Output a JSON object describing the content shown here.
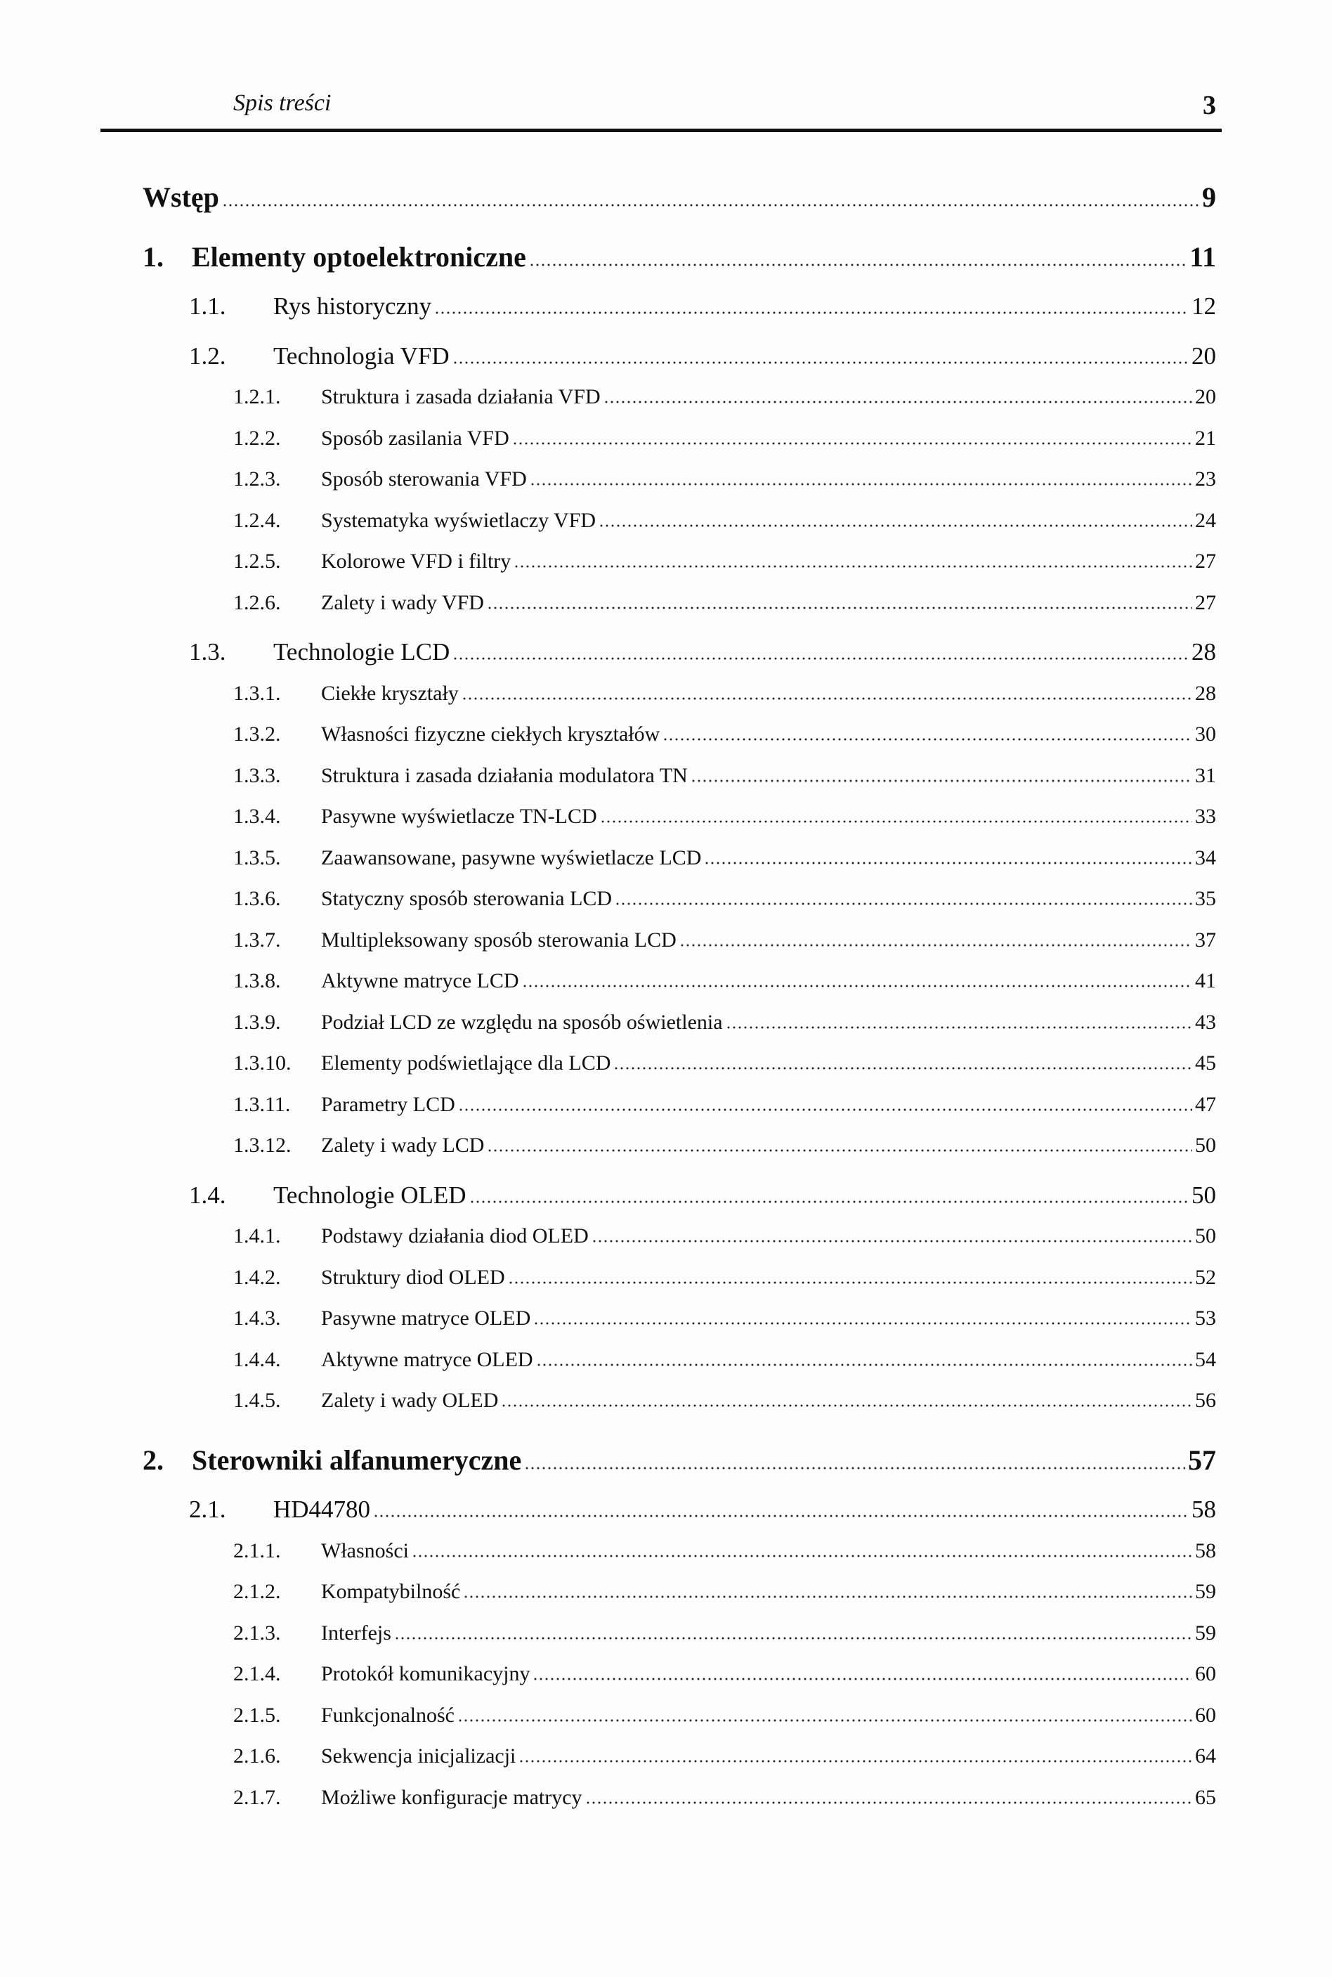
{
  "header": {
    "title": "Spis treści",
    "page_number": "3"
  },
  "toc": [
    {
      "level": 0,
      "num": "",
      "title": "Wstęp",
      "page": "9"
    },
    {
      "level": 1,
      "num": "1.",
      "title": "Elementy optoelektroniczne",
      "page": "11"
    },
    {
      "level": 2,
      "num": "1.1.",
      "title": "Rys historyczny",
      "page": "12"
    },
    {
      "level": 2,
      "num": "1.2.",
      "title": "Technologia VFD",
      "page": "20"
    },
    {
      "level": 3,
      "num": "1.2.1.",
      "title": "Struktura i zasada działania VFD",
      "page": "20"
    },
    {
      "level": 3,
      "num": "1.2.2.",
      "title": "Sposób zasilania VFD",
      "page": "21"
    },
    {
      "level": 3,
      "num": "1.2.3.",
      "title": "Sposób sterowania VFD",
      "page": "23"
    },
    {
      "level": 3,
      "num": "1.2.4.",
      "title": "Systematyka wyświetlaczy VFD",
      "page": "24"
    },
    {
      "level": 3,
      "num": "1.2.5.",
      "title": "Kolorowe VFD i filtry",
      "page": "27"
    },
    {
      "level": 3,
      "num": "1.2.6.",
      "title": "Zalety i wady VFD",
      "page": "27"
    },
    {
      "level": 2,
      "num": "1.3.",
      "title": "Technologie LCD",
      "page": "28"
    },
    {
      "level": 3,
      "num": "1.3.1.",
      "title": "Ciekłe kryształy",
      "page": "28"
    },
    {
      "level": 3,
      "num": "1.3.2.",
      "title": "Własności fizyczne ciekłych kryształów",
      "page": "30"
    },
    {
      "level": 3,
      "num": "1.3.3.",
      "title": "Struktura i zasada działania modulatora TN",
      "page": "31"
    },
    {
      "level": 3,
      "num": "1.3.4.",
      "title": "Pasywne wyświetlacze TN-LCD",
      "page": "33"
    },
    {
      "level": 3,
      "num": "1.3.5.",
      "title": "Zaawansowane, pasywne wyświetlacze LCD",
      "page": "34"
    },
    {
      "level": 3,
      "num": "1.3.6.",
      "title": "Statyczny sposób sterowania LCD",
      "page": "35"
    },
    {
      "level": 3,
      "num": "1.3.7.",
      "title": "Multipleksowany sposób sterowania LCD",
      "page": "37"
    },
    {
      "level": 3,
      "num": "1.3.8.",
      "title": "Aktywne matryce LCD",
      "page": "41"
    },
    {
      "level": 3,
      "num": "1.3.9.",
      "title": "Podział LCD ze względu na sposób oświetlenia",
      "page": "43"
    },
    {
      "level": 3,
      "num": "1.3.10.",
      "title": "Elementy podświetlające dla LCD",
      "page": "45"
    },
    {
      "level": 3,
      "num": "1.3.11.",
      "title": "Parametry LCD",
      "page": "47"
    },
    {
      "level": 3,
      "num": "1.3.12.",
      "title": "Zalety i wady LCD",
      "page": "50"
    },
    {
      "level": 2,
      "num": "1.4.",
      "title": "Technologie OLED",
      "page": "50"
    },
    {
      "level": 3,
      "num": "1.4.1.",
      "title": "Podstawy działania diod OLED",
      "page": "50"
    },
    {
      "level": 3,
      "num": "1.4.2.",
      "title": "Struktury diod OLED",
      "page": "52"
    },
    {
      "level": 3,
      "num": "1.4.3.",
      "title": "Pasywne matryce OLED",
      "page": "53"
    },
    {
      "level": 3,
      "num": "1.4.4.",
      "title": "Aktywne matryce OLED",
      "page": "54"
    },
    {
      "level": 3,
      "num": "1.4.5.",
      "title": "Zalety i wady OLED",
      "page": "56"
    },
    {
      "level": 1,
      "num": "2.",
      "title": "Sterowniki alfanumeryczne",
      "page": "57"
    },
    {
      "level": 2,
      "num": "2.1.",
      "title": "HD44780",
      "page": "58"
    },
    {
      "level": 3,
      "num": "2.1.1.",
      "title": "Własności",
      "page": "58"
    },
    {
      "level": 3,
      "num": "2.1.2.",
      "title": "Kompatybilność",
      "page": "59"
    },
    {
      "level": 3,
      "num": "2.1.3.",
      "title": "Interfejs",
      "page": "59"
    },
    {
      "level": 3,
      "num": "2.1.4.",
      "title": "Protokół komunikacyjny",
      "page": "60"
    },
    {
      "level": 3,
      "num": "2.1.5.",
      "title": "Funkcjonalność",
      "page": "60"
    },
    {
      "level": 3,
      "num": "2.1.6.",
      "title": "Sekwencja inicjalizacji",
      "page": "64"
    },
    {
      "level": 3,
      "num": "2.1.7.",
      "title": "Możliwe konfiguracje matrycy",
      "page": "65"
    }
  ]
}
